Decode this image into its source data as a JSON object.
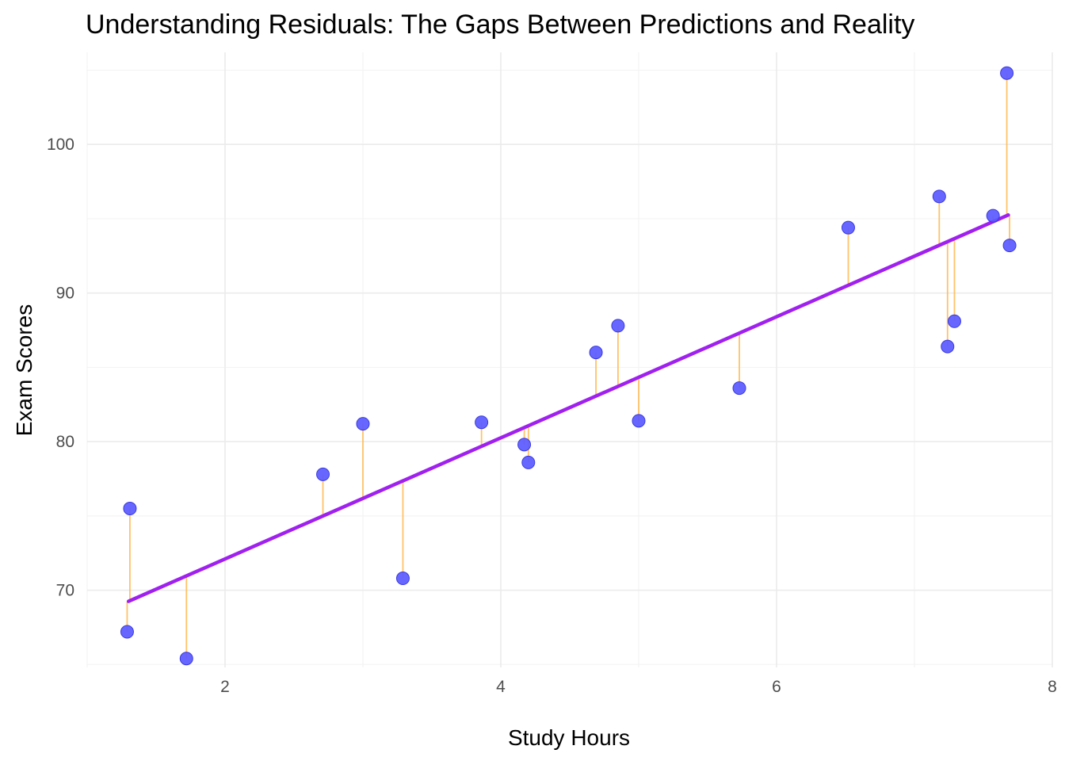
{
  "chart_data": {
    "type": "scatter",
    "title": "Understanding Residuals: The Gaps Between Predictions and Reality",
    "xlabel": "Study Hours",
    "ylabel": "Exam Scores",
    "xlim": [
      1.0,
      8.0
    ],
    "ylim": [
      64.8,
      106.2
    ],
    "x_ticks": [
      2,
      4,
      6,
      8
    ],
    "x_tick_labels": [
      "2",
      "4",
      "6",
      "8"
    ],
    "x_minor_ticks": [
      1,
      3,
      5,
      7
    ],
    "y_ticks": [
      70,
      80,
      90,
      100
    ],
    "y_tick_labels": [
      "70",
      "80",
      "90",
      "100"
    ],
    "y_minor_ticks": [
      65,
      75,
      85,
      95,
      105
    ],
    "grid": true,
    "points": [
      {
        "x": 1.29,
        "y": 67.2,
        "predicted": 69.2
      },
      {
        "x": 1.31,
        "y": 75.5,
        "predicted": 69.3
      },
      {
        "x": 1.72,
        "y": 65.4,
        "predicted": 70.9
      },
      {
        "x": 2.71,
        "y": 77.8,
        "predicted": 75.0
      },
      {
        "x": 3.0,
        "y": 81.2,
        "predicted": 76.2
      },
      {
        "x": 3.29,
        "y": 70.8,
        "predicted": 77.4
      },
      {
        "x": 3.86,
        "y": 81.3,
        "predicted": 79.7
      },
      {
        "x": 4.17,
        "y": 79.8,
        "predicted": 80.9
      },
      {
        "x": 4.2,
        "y": 78.6,
        "predicted": 81.0
      },
      {
        "x": 4.69,
        "y": 86.0,
        "predicted": 83.0
      },
      {
        "x": 4.85,
        "y": 87.8,
        "predicted": 83.7
      },
      {
        "x": 5.0,
        "y": 81.4,
        "predicted": 84.3
      },
      {
        "x": 5.73,
        "y": 83.6,
        "predicted": 87.3
      },
      {
        "x": 6.52,
        "y": 94.4,
        "predicted": 90.5
      },
      {
        "x": 7.18,
        "y": 96.5,
        "predicted": 93.2
      },
      {
        "x": 7.24,
        "y": 86.4,
        "predicted": 93.4
      },
      {
        "x": 7.29,
        "y": 88.1,
        "predicted": 93.6
      },
      {
        "x": 7.57,
        "y": 95.2,
        "predicted": 94.8
      },
      {
        "x": 7.67,
        "y": 104.8,
        "predicted": 95.2
      },
      {
        "x": 7.69,
        "y": 93.2,
        "predicted": 95.3
      }
    ],
    "fit_line": {
      "x": [
        1.3,
        7.68
      ],
      "y": [
        69.25,
        95.25
      ]
    },
    "colors": {
      "points": "#5a5aff",
      "fit_line": "#a020f0",
      "residuals": "#ffb84d",
      "grid": "#ebebeb"
    }
  }
}
